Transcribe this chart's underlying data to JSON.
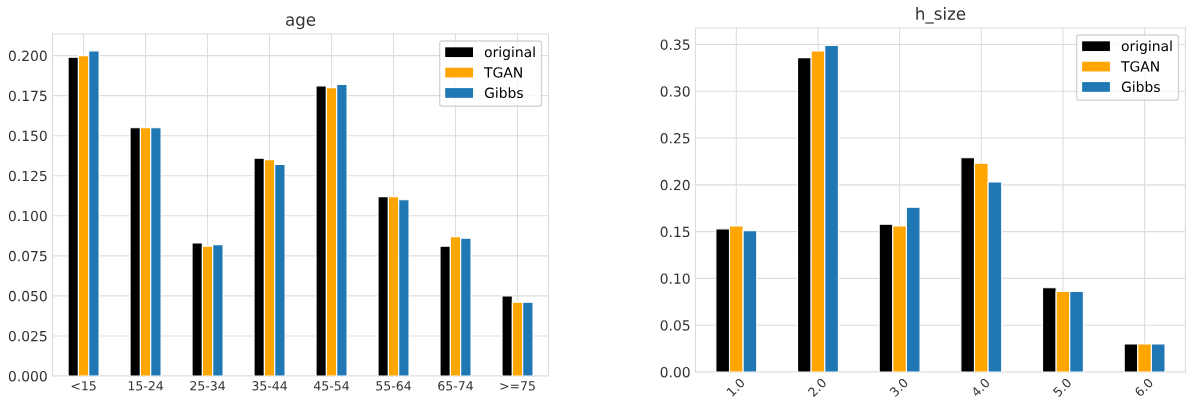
{
  "chart_data": [
    {
      "type": "bar",
      "title": "age",
      "categories": [
        "<15",
        "15-24",
        "25-34",
        "35-44",
        "45-54",
        "55-64",
        "65-74",
        ">=75"
      ],
      "series": [
        {
          "name": "original",
          "color": "#000000",
          "values": [
            0.199,
            0.155,
            0.083,
            0.136,
            0.181,
            0.112,
            0.081,
            0.05
          ]
        },
        {
          "name": "TGAN",
          "color": "#ffa500",
          "values": [
            0.2,
            0.155,
            0.081,
            0.135,
            0.18,
            0.112,
            0.087,
            0.046
          ]
        },
        {
          "name": "Gibbs",
          "color": "#1f77b4",
          "values": [
            0.203,
            0.155,
            0.082,
            0.132,
            0.182,
            0.11,
            0.086,
            0.046
          ]
        }
      ],
      "ylim": [
        0,
        0.2135
      ],
      "yticks": [
        {
          "value": 0,
          "label": "0.000"
        },
        {
          "value": 0.025,
          "label": "0.025"
        },
        {
          "value": 0.05,
          "label": "0.050"
        },
        {
          "value": 0.075,
          "label": "0.075"
        },
        {
          "value": 0.1,
          "label": "0.100"
        },
        {
          "value": 0.125,
          "label": "0.125"
        },
        {
          "value": 0.15,
          "label": "0.150"
        },
        {
          "value": 0.175,
          "label": "0.175"
        },
        {
          "value": 0.2,
          "label": "0.200"
        }
      ],
      "grid": true,
      "legend": "top right"
    },
    {
      "type": "bar",
      "title": "h_size",
      "categories": [
        "1.0",
        "2.0",
        "3.0",
        "4.0",
        "5.0",
        "6.0"
      ],
      "series": [
        {
          "name": "original",
          "color": "#000000",
          "values": [
            0.153,
            0.336,
            0.158,
            0.229,
            0.09,
            0.03
          ]
        },
        {
          "name": "TGAN",
          "color": "#ffa500",
          "values": [
            0.156,
            0.343,
            0.156,
            0.223,
            0.086,
            0.03
          ]
        },
        {
          "name": "Gibbs",
          "color": "#1f77b4",
          "values": [
            0.151,
            0.349,
            0.176,
            0.203,
            0.086,
            0.03
          ]
        }
      ],
      "ylim": [
        0,
        0.3676
      ],
      "yticks": [
        {
          "value": 0,
          "label": "0.00"
        },
        {
          "value": 0.05,
          "label": "0.05"
        },
        {
          "value": 0.1,
          "label": "0.10"
        },
        {
          "value": 0.15,
          "label": "0.15"
        },
        {
          "value": 0.2,
          "label": "0.20"
        },
        {
          "value": 0.25,
          "label": "0.25"
        },
        {
          "value": 0.3,
          "label": "0.30"
        },
        {
          "value": 0.35,
          "label": "0.35"
        }
      ],
      "grid": true,
      "legend": "top right"
    }
  ]
}
